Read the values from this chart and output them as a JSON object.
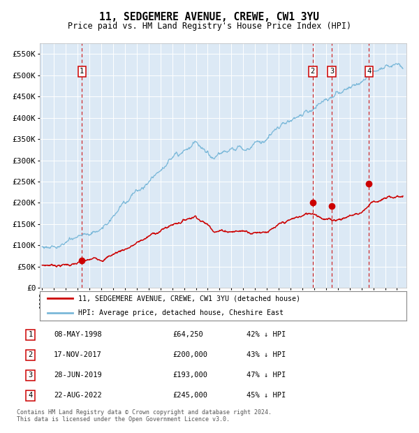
{
  "title": "11, SEDGEMERE AVENUE, CREWE, CW1 3YU",
  "subtitle": "Price paid vs. HM Land Registry's House Price Index (HPI)",
  "background_color": "#dce9f5",
  "plot_bg_color": "#dce9f5",
  "hpi_color": "#7ab8d9",
  "price_color": "#cc0000",
  "marker_color": "#cc0000",
  "dashed_line_color": "#cc0000",
  "ylim": [
    0,
    575000
  ],
  "yticks": [
    0,
    50000,
    100000,
    150000,
    200000,
    250000,
    300000,
    350000,
    400000,
    450000,
    500000,
    550000
  ],
  "ytick_labels": [
    "£0",
    "£50K",
    "£100K",
    "£150K",
    "£200K",
    "£250K",
    "£300K",
    "£350K",
    "£400K",
    "£450K",
    "£500K",
    "£550K"
  ],
  "xlim_start": 1994.8,
  "xlim_end": 2025.8,
  "transactions": [
    {
      "id": 1,
      "date_num": 1998.36,
      "price": 64250
    },
    {
      "id": 2,
      "date_num": 2017.88,
      "price": 200000
    },
    {
      "id": 3,
      "date_num": 2019.49,
      "price": 193000
    },
    {
      "id": 4,
      "date_num": 2022.64,
      "price": 245000
    }
  ],
  "legend_property_label": "11, SEDGEMERE AVENUE, CREWE, CW1 3YU (detached house)",
  "legend_hpi_label": "HPI: Average price, detached house, Cheshire East",
  "table_rows": [
    {
      "id": 1,
      "date": "08-MAY-1998",
      "price": "£64,250",
      "hpi": "42% ↓ HPI"
    },
    {
      "id": 2,
      "date": "17-NOV-2017",
      "price": "£200,000",
      "hpi": "43% ↓ HPI"
    },
    {
      "id": 3,
      "date": "28-JUN-2019",
      "price": "£193,000",
      "hpi": "47% ↓ HPI"
    },
    {
      "id": 4,
      "date": "22-AUG-2022",
      "price": "£245,000",
      "hpi": "45% ↓ HPI"
    }
  ],
  "footnote": "Contains HM Land Registry data © Crown copyright and database right 2024.\nThis data is licensed under the Open Government Licence v3.0."
}
